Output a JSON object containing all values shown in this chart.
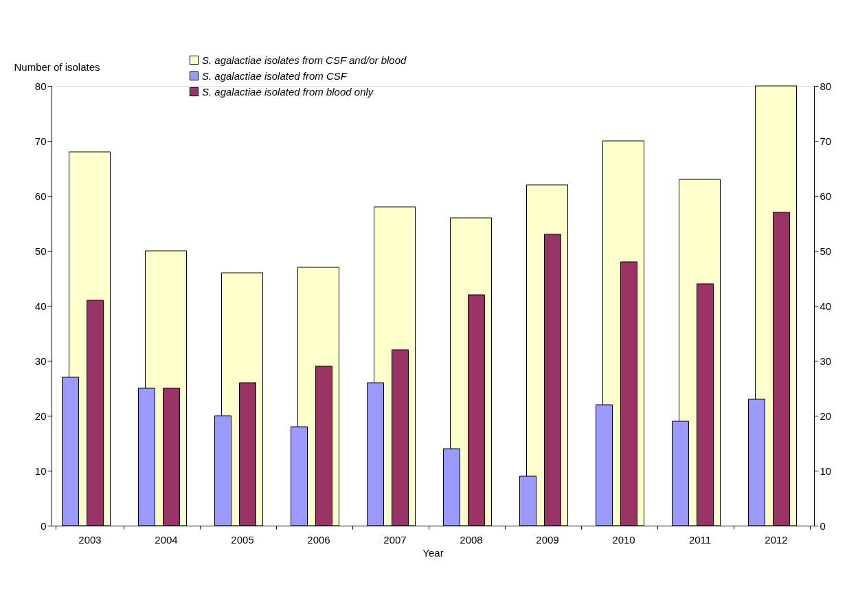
{
  "chart_data": {
    "type": "bar",
    "xlabel": "Year",
    "ylabel": "Number of isolates",
    "categories": [
      "2003",
      "2004",
      "2005",
      "2006",
      "2007",
      "2008",
      "2009",
      "2010",
      "2011",
      "2012"
    ],
    "series": [
      {
        "name": "S. agalactiae isolates from CSF and/or blood",
        "color": "#ffffcc",
        "values": [
          68,
          50,
          46,
          47,
          58,
          56,
          62,
          70,
          63,
          80
        ]
      },
      {
        "name": "S. agalactiae isolated from CSF",
        "color": "#9999ff",
        "values": [
          27,
          25,
          20,
          18,
          26,
          14,
          9,
          22,
          19,
          23
        ]
      },
      {
        "name": "S. agalactiae isolated from blood only",
        "color": "#993366",
        "values": [
          41,
          25,
          26,
          29,
          32,
          42,
          53,
          48,
          44,
          57
        ]
      }
    ],
    "ylim": [
      0,
      80
    ],
    "yticks": [
      0,
      10,
      20,
      30,
      40,
      50,
      60,
      70,
      80
    ],
    "y2lim": [
      0,
      80
    ],
    "y2ticks": [
      0,
      10,
      20,
      30,
      40,
      50,
      60,
      70,
      80
    ],
    "grid": false,
    "legend": "top"
  }
}
